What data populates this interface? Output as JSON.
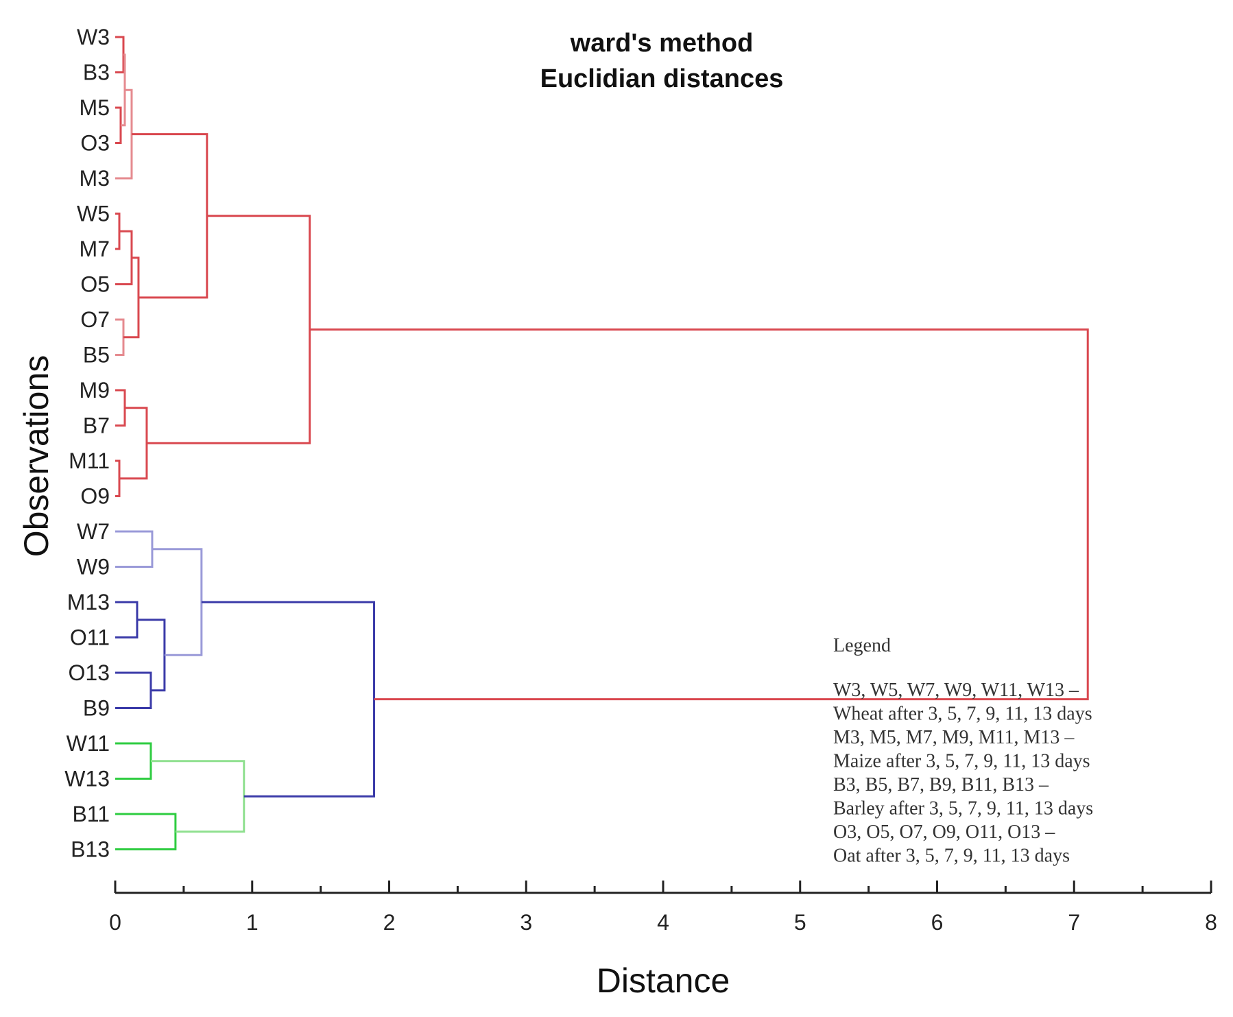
{
  "chart_data": {
    "type": "dendrogram",
    "title": "ward's method",
    "subtitle": "Euclidian distances",
    "xlabel": "Distance",
    "ylabel": "Observations",
    "xlim": [
      0,
      8
    ],
    "xticks": [
      0,
      1,
      2,
      3,
      4,
      5,
      6,
      7,
      8
    ],
    "leaves": [
      "W3",
      "B3",
      "M5",
      "O3",
      "M3",
      "W5",
      "M7",
      "O5",
      "O7",
      "B5",
      "M9",
      "B7",
      "M11",
      "O9",
      "W7",
      "W9",
      "M13",
      "O11",
      "O13",
      "B9",
      "W11",
      "W13",
      "B11",
      "B13"
    ],
    "colors": {
      "red": "#d9484f",
      "red_light": "#e58a8f",
      "blue": "#3a3aa8",
      "blue_light": "#9a9ad8",
      "green": "#2ecc40",
      "green_light": "#8fe08f",
      "axis": "#222222"
    },
    "merges": [
      {
        "a": "W3",
        "b": "B3",
        "height": 0.06,
        "color": "red"
      },
      {
        "a": "M5",
        "b": "O3",
        "height": 0.04,
        "color": "red"
      },
      {
        "a": "m0",
        "b": "m1",
        "height": 0.07,
        "color": "red_light"
      },
      {
        "a": "m2",
        "b": "M3",
        "height": 0.12,
        "color": "red_light"
      },
      {
        "a": "W5",
        "b": "M7",
        "height": 0.03,
        "color": "red"
      },
      {
        "a": "m4",
        "b": "O5",
        "height": 0.12,
        "color": "red"
      },
      {
        "a": "O7",
        "b": "B5",
        "height": 0.06,
        "color": "red_light"
      },
      {
        "a": "m5",
        "b": "m6",
        "height": 0.17,
        "color": "red"
      },
      {
        "a": "m3",
        "b": "m7",
        "height": 0.67,
        "color": "red"
      },
      {
        "a": "M9",
        "b": "B7",
        "height": 0.07,
        "color": "red"
      },
      {
        "a": "M11",
        "b": "O9",
        "height": 0.03,
        "color": "red"
      },
      {
        "a": "m9",
        "b": "m10",
        "height": 0.23,
        "color": "red"
      },
      {
        "a": "m8",
        "b": "m11",
        "height": 1.42,
        "color": "red"
      },
      {
        "a": "W7",
        "b": "W9",
        "height": 0.27,
        "color": "blue_light"
      },
      {
        "a": "M13",
        "b": "O11",
        "height": 0.16,
        "color": "blue"
      },
      {
        "a": "O13",
        "b": "B9",
        "height": 0.26,
        "color": "blue"
      },
      {
        "a": "m14",
        "b": "m15",
        "height": 0.36,
        "color": "blue"
      },
      {
        "a": "m13",
        "b": "m16",
        "height": 0.63,
        "color": "blue_light"
      },
      {
        "a": "W11",
        "b": "W13",
        "height": 0.26,
        "color": "green"
      },
      {
        "a": "B11",
        "b": "B13",
        "height": 0.44,
        "color": "green"
      },
      {
        "a": "m18",
        "b": "m19",
        "height": 0.94,
        "color": "green_light"
      },
      {
        "a": "m17",
        "b": "m20",
        "height": 1.89,
        "color": "blue"
      },
      {
        "a": "m12",
        "b": "m21",
        "height": 7.1,
        "color": "red"
      }
    ],
    "legend": {
      "title": "Legend",
      "lines": [
        "W3, W5, W7, W9, W11, W13 –",
        "Wheat after 3, 5, 7, 9, 11, 13 days",
        "M3, M5, M7, M9, M11, M13 –",
        "Maize after 3, 5, 7, 9, 11, 13 days",
        "B3, B5, B7, B9, B11, B13 –",
        "Barley after 3, 5, 7, 9, 11, 13 days",
        "O3, O5, O7, O9, O11, O13 –",
        "Oat after 3, 5, 7, 9, 11, 13 days"
      ]
    }
  }
}
